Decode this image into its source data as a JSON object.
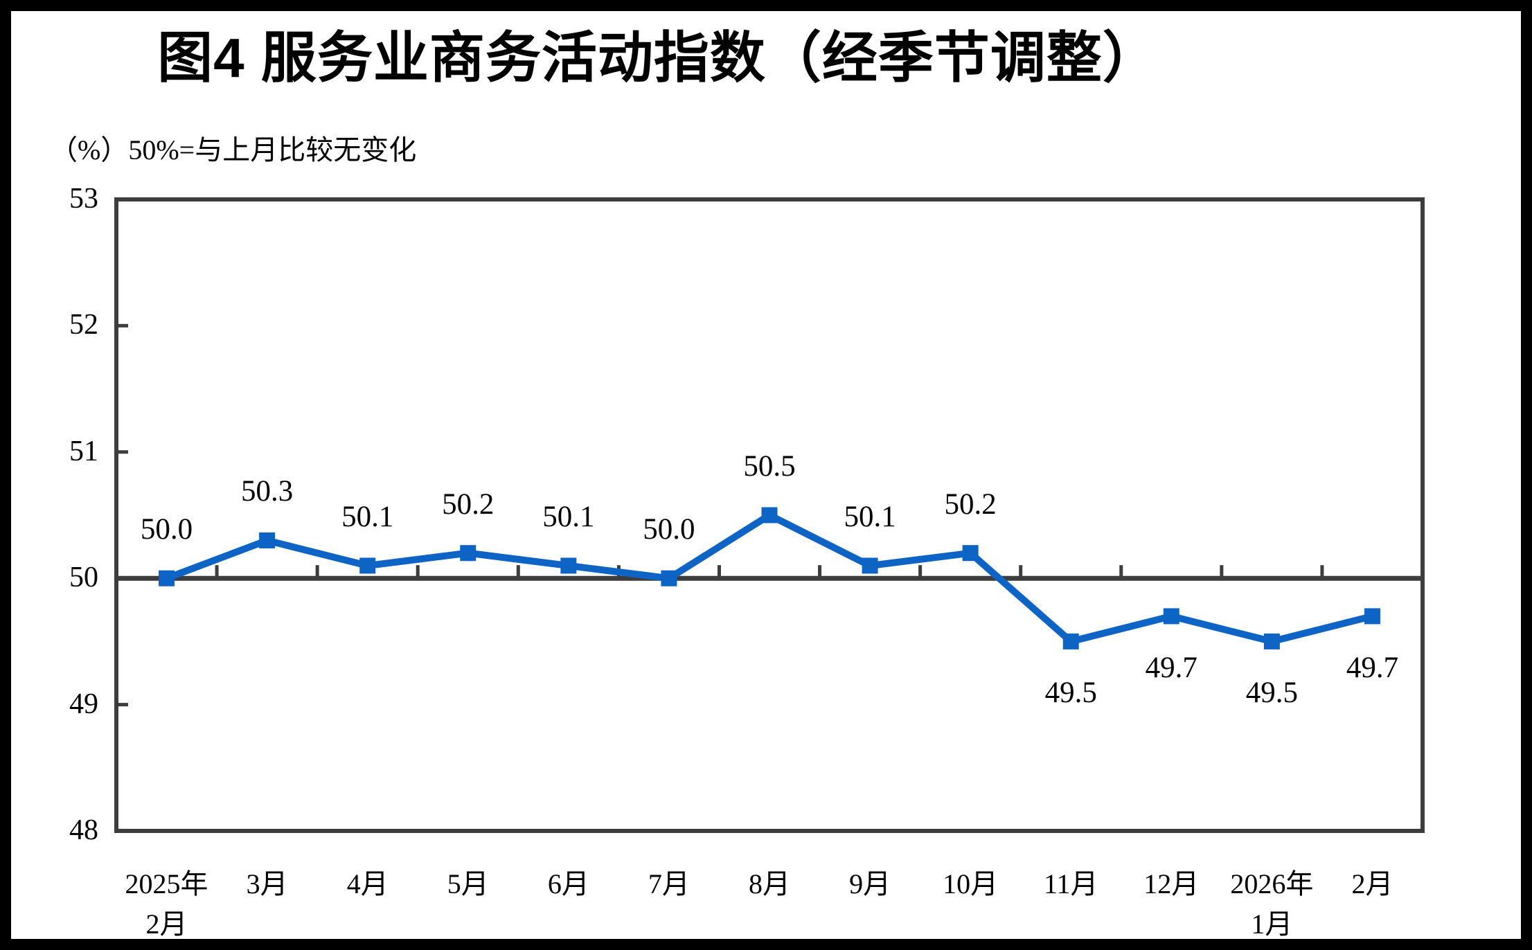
{
  "header": {
    "title": "图4  服务业商务活动指数（经季节调整）",
    "subtitle": "（%）50%=与上月比较无变化"
  },
  "chart_data": {
    "type": "line",
    "title": "图4  服务业商务活动指数（经季节调整）",
    "subtitle": "（%）50%=与上月比较无变化",
    "unit": "%",
    "series_name": "服务业商务活动指数（经季节调整）",
    "categories": [
      [
        "2025年",
        "2月"
      ],
      [
        "3月"
      ],
      [
        "4月"
      ],
      [
        "5月"
      ],
      [
        "6月"
      ],
      [
        "7月"
      ],
      [
        "8月"
      ],
      [
        "9月"
      ],
      [
        "10月"
      ],
      [
        "11月"
      ],
      [
        "12月"
      ],
      [
        "2026年",
        "1月"
      ],
      [
        "2月"
      ]
    ],
    "values": [
      50.0,
      50.3,
      50.1,
      50.2,
      50.1,
      50.0,
      50.5,
      50.1,
      50.2,
      49.5,
      49.7,
      49.5,
      49.7
    ],
    "data_labels": [
      "50.0",
      "50.3",
      "50.1",
      "50.2",
      "50.1",
      "50.0",
      "50.5",
      "50.1",
      "50.2",
      "49.5",
      "49.7",
      "49.5",
      "49.7"
    ],
    "ylim": [
      48,
      53
    ],
    "yticks": [
      48,
      49,
      50,
      51,
      52,
      53
    ],
    "baseline_value": 50,
    "baseline_note": "50%=与上月比较无变化",
    "legend_position": "none",
    "grid": false,
    "marker_shape": "square",
    "line_color": "#0D64C4",
    "axis_color": "#3d3d3d",
    "label_color": "#000000",
    "background_color": "#ffffff"
  }
}
